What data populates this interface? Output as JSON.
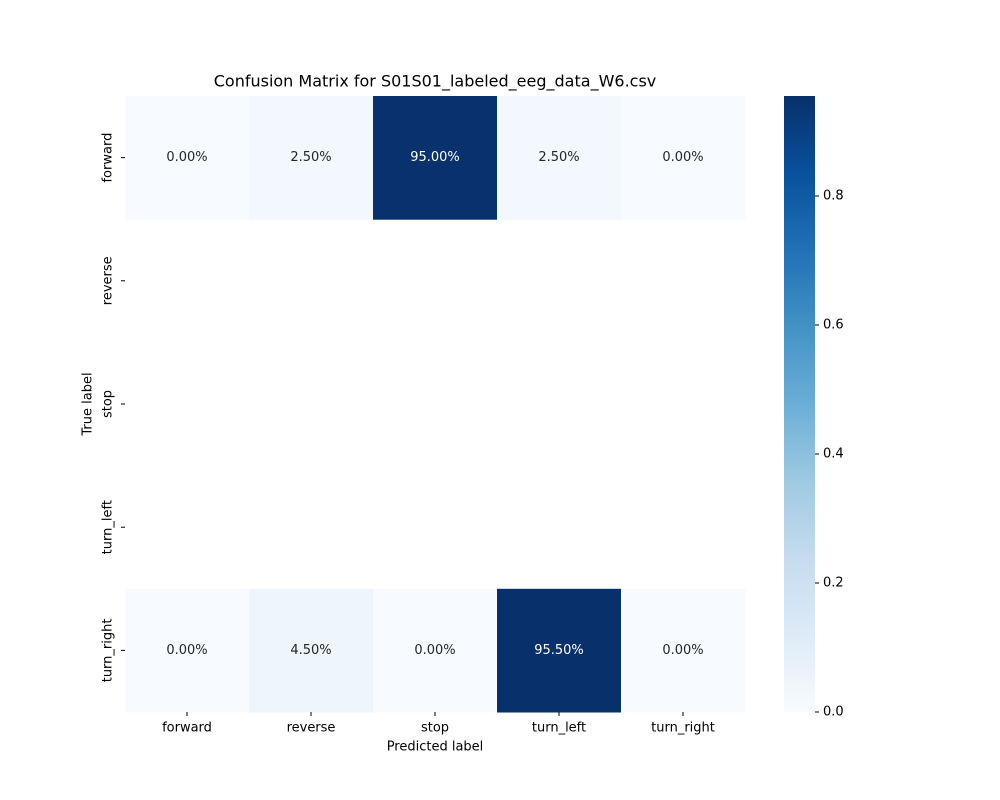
{
  "chart_data": {
    "type": "heatmap",
    "title": "Confusion Matrix for S01S01_labeled_eeg_data_W6.csv",
    "x_label": "Predicted label",
    "y_label": "True label",
    "x_categories": [
      "forward",
      "reverse",
      "stop",
      "turn_left",
      "turn_right"
    ],
    "y_categories": [
      "forward",
      "reverse",
      "stop",
      "turn_left",
      "turn_right"
    ],
    "values": [
      [
        0,
        0.025,
        0.95,
        0.025,
        0
      ],
      [
        null,
        null,
        null,
        null,
        null
      ],
      [
        null,
        null,
        null,
        null,
        null
      ],
      [
        null,
        null,
        null,
        null,
        null
      ],
      [
        0,
        0.045,
        0,
        0.955,
        0
      ]
    ],
    "value_labels": [
      [
        "0.00%",
        "2.50%",
        "95.00%",
        "2.50%",
        "0.00%"
      ],
      [
        null,
        null,
        null,
        null,
        null
      ],
      [
        null,
        null,
        null,
        null,
        null
      ],
      [
        null,
        null,
        null,
        null,
        null
      ],
      [
        "0.00%",
        "4.50%",
        "0.00%",
        "95.50%",
        "0.00%"
      ]
    ],
    "colormap": "Blues",
    "clim": [
      0,
      0.955
    ],
    "cticks": [
      {
        "value": 0,
        "label": "0.0"
      },
      {
        "value": 0.2,
        "label": "0.2"
      },
      {
        "value": 0.4,
        "label": "0.4"
      },
      {
        "value": 0.6,
        "label": "0.6"
      },
      {
        "value": 0.8,
        "label": "0.8"
      }
    ]
  }
}
